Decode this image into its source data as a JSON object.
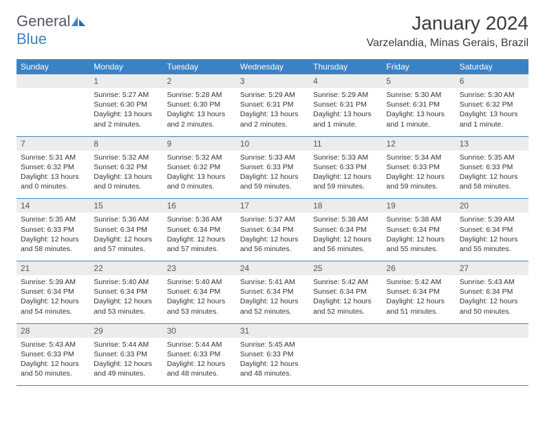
{
  "brand": {
    "part1": "General",
    "part2": "Blue"
  },
  "title": "January 2024",
  "location": "Varzelandia, Minas Gerais, Brazil",
  "colors": {
    "header_bg": "#3b82c4",
    "header_text": "#ffffff",
    "daynum_bg": "#ececec",
    "border": "#3b82c4"
  },
  "day_names": [
    "Sunday",
    "Monday",
    "Tuesday",
    "Wednesday",
    "Thursday",
    "Friday",
    "Saturday"
  ],
  "weeks": [
    [
      null,
      {
        "n": "1",
        "sr": "5:27 AM",
        "ss": "6:30 PM",
        "dl": "13 hours and 2 minutes."
      },
      {
        "n": "2",
        "sr": "5:28 AM",
        "ss": "6:30 PM",
        "dl": "13 hours and 2 minutes."
      },
      {
        "n": "3",
        "sr": "5:29 AM",
        "ss": "6:31 PM",
        "dl": "13 hours and 2 minutes."
      },
      {
        "n": "4",
        "sr": "5:29 AM",
        "ss": "6:31 PM",
        "dl": "13 hours and 1 minute."
      },
      {
        "n": "5",
        "sr": "5:30 AM",
        "ss": "6:31 PM",
        "dl": "13 hours and 1 minute."
      },
      {
        "n": "6",
        "sr": "5:30 AM",
        "ss": "6:32 PM",
        "dl": "13 hours and 1 minute."
      }
    ],
    [
      {
        "n": "7",
        "sr": "5:31 AM",
        "ss": "6:32 PM",
        "dl": "13 hours and 0 minutes."
      },
      {
        "n": "8",
        "sr": "5:32 AM",
        "ss": "6:32 PM",
        "dl": "13 hours and 0 minutes."
      },
      {
        "n": "9",
        "sr": "5:32 AM",
        "ss": "6:32 PM",
        "dl": "13 hours and 0 minutes."
      },
      {
        "n": "10",
        "sr": "5:33 AM",
        "ss": "6:33 PM",
        "dl": "12 hours and 59 minutes."
      },
      {
        "n": "11",
        "sr": "5:33 AM",
        "ss": "6:33 PM",
        "dl": "12 hours and 59 minutes."
      },
      {
        "n": "12",
        "sr": "5:34 AM",
        "ss": "6:33 PM",
        "dl": "12 hours and 59 minutes."
      },
      {
        "n": "13",
        "sr": "5:35 AM",
        "ss": "6:33 PM",
        "dl": "12 hours and 58 minutes."
      }
    ],
    [
      {
        "n": "14",
        "sr": "5:35 AM",
        "ss": "6:33 PM",
        "dl": "12 hours and 58 minutes."
      },
      {
        "n": "15",
        "sr": "5:36 AM",
        "ss": "6:34 PM",
        "dl": "12 hours and 57 minutes."
      },
      {
        "n": "16",
        "sr": "5:36 AM",
        "ss": "6:34 PM",
        "dl": "12 hours and 57 minutes."
      },
      {
        "n": "17",
        "sr": "5:37 AM",
        "ss": "6:34 PM",
        "dl": "12 hours and 56 minutes."
      },
      {
        "n": "18",
        "sr": "5:38 AM",
        "ss": "6:34 PM",
        "dl": "12 hours and 56 minutes."
      },
      {
        "n": "19",
        "sr": "5:38 AM",
        "ss": "6:34 PM",
        "dl": "12 hours and 55 minutes."
      },
      {
        "n": "20",
        "sr": "5:39 AM",
        "ss": "6:34 PM",
        "dl": "12 hours and 55 minutes."
      }
    ],
    [
      {
        "n": "21",
        "sr": "5:39 AM",
        "ss": "6:34 PM",
        "dl": "12 hours and 54 minutes."
      },
      {
        "n": "22",
        "sr": "5:40 AM",
        "ss": "6:34 PM",
        "dl": "12 hours and 53 minutes."
      },
      {
        "n": "23",
        "sr": "5:40 AM",
        "ss": "6:34 PM",
        "dl": "12 hours and 53 minutes."
      },
      {
        "n": "24",
        "sr": "5:41 AM",
        "ss": "6:34 PM",
        "dl": "12 hours and 52 minutes."
      },
      {
        "n": "25",
        "sr": "5:42 AM",
        "ss": "6:34 PM",
        "dl": "12 hours and 52 minutes."
      },
      {
        "n": "26",
        "sr": "5:42 AM",
        "ss": "6:34 PM",
        "dl": "12 hours and 51 minutes."
      },
      {
        "n": "27",
        "sr": "5:43 AM",
        "ss": "6:34 PM",
        "dl": "12 hours and 50 minutes."
      }
    ],
    [
      {
        "n": "28",
        "sr": "5:43 AM",
        "ss": "6:33 PM",
        "dl": "12 hours and 50 minutes."
      },
      {
        "n": "29",
        "sr": "5:44 AM",
        "ss": "6:33 PM",
        "dl": "12 hours and 49 minutes."
      },
      {
        "n": "30",
        "sr": "5:44 AM",
        "ss": "6:33 PM",
        "dl": "12 hours and 48 minutes."
      },
      {
        "n": "31",
        "sr": "5:45 AM",
        "ss": "6:33 PM",
        "dl": "12 hours and 48 minutes."
      },
      null,
      null,
      null
    ]
  ],
  "labels": {
    "sunrise": "Sunrise: ",
    "sunset": "Sunset: ",
    "daylight": "Daylight: "
  }
}
